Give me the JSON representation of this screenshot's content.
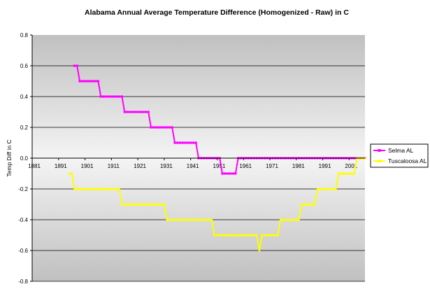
{
  "chart_data": {
    "type": "line",
    "title": "Alabama Annual Average Temperature Difference (Homogenized - Raw) in C",
    "xlabel": "",
    "ylabel": "Temp Diff in C",
    "xlim": [
      1881,
      2007
    ],
    "ylim": [
      -0.8,
      0.8
    ],
    "x_ticks": [
      "1881",
      "1891",
      "1901",
      "1911",
      "1921",
      "1931",
      "1941",
      "1951",
      "1961",
      "1971",
      "1981",
      "1991",
      "2001"
    ],
    "y_ticks": [
      "0.8",
      "0.6",
      "0.4",
      "0.2",
      "0.0",
      "-0.2",
      "-0.4",
      "-0.6",
      "-0.8"
    ],
    "grid": "horizontal",
    "background": "gradient-gray",
    "legend_position": "right",
    "series": [
      {
        "name": "Selma AL",
        "color": "#ff00ff",
        "steps": [
          [
            1897,
            1898,
            0.6
          ],
          [
            1899,
            1906,
            0.5
          ],
          [
            1907,
            1915,
            0.4
          ],
          [
            1916,
            1925,
            0.3
          ],
          [
            1926,
            1934,
            0.2
          ],
          [
            1935,
            1943,
            0.1
          ],
          [
            1944,
            1952,
            0.0
          ],
          [
            1953,
            1958,
            -0.1
          ],
          [
            1959,
            2007,
            0.0
          ]
        ]
      },
      {
        "name": "Tuscaloosa AL",
        "color": "#ffff00",
        "steps": [
          [
            1895,
            1896,
            -0.1
          ],
          [
            1897,
            1914,
            -0.2
          ],
          [
            1915,
            1931,
            -0.3
          ],
          [
            1932,
            1949,
            -0.4
          ],
          [
            1950,
            1966,
            -0.5
          ],
          [
            1967,
            1967,
            -0.6
          ],
          [
            1968,
            1974,
            -0.5
          ],
          [
            1975,
            1982,
            -0.4
          ],
          [
            1983,
            1988,
            -0.3
          ],
          [
            1989,
            1996,
            -0.2
          ],
          [
            1997,
            2003,
            -0.1
          ],
          [
            2004,
            2007,
            0.0
          ]
        ]
      }
    ]
  }
}
